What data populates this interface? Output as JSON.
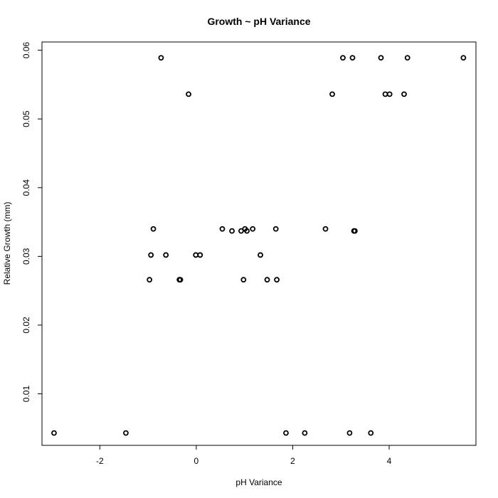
{
  "chart_data": {
    "type": "scatter",
    "title": "Growth ~ pH Variance",
    "xlabel": "pH Variance",
    "ylabel": "Relative Growth (mm)",
    "xlim": [
      -3.2,
      5.8
    ],
    "ylim": [
      0.0025,
      0.0612
    ],
    "x_ticks": [
      -2,
      0,
      2,
      4
    ],
    "x_tick_labels": [
      "-2",
      "0",
      "2",
      "4"
    ],
    "y_ticks": [
      0.01,
      0.02,
      0.03,
      0.04,
      0.05,
      0.06
    ],
    "y_tick_labels": [
      "0.01",
      "0.02",
      "0.03",
      "0.04",
      "0.05",
      "0.06"
    ],
    "grid": false,
    "marker": "open-circle",
    "points": [
      {
        "x": -2.95,
        "y": 0.0043
      },
      {
        "x": -1.46,
        "y": 0.0043
      },
      {
        "x": 1.86,
        "y": 0.0043
      },
      {
        "x": 2.25,
        "y": 0.0043
      },
      {
        "x": 3.18,
        "y": 0.0043
      },
      {
        "x": 3.62,
        "y": 0.0043
      },
      {
        "x": -0.97,
        "y": 0.0266
      },
      {
        "x": -0.35,
        "y": 0.0266
      },
      {
        "x": -0.33,
        "y": 0.0266
      },
      {
        "x": 0.98,
        "y": 0.0266
      },
      {
        "x": 1.47,
        "y": 0.0266
      },
      {
        "x": 1.67,
        "y": 0.0266
      },
      {
        "x": -0.94,
        "y": 0.0302
      },
      {
        "x": -0.63,
        "y": 0.0302
      },
      {
        "x": -0.01,
        "y": 0.0302
      },
      {
        "x": 0.08,
        "y": 0.0302
      },
      {
        "x": 1.33,
        "y": 0.0302
      },
      {
        "x": 0.74,
        "y": 0.0337
      },
      {
        "x": 0.93,
        "y": 0.0337
      },
      {
        "x": 1.05,
        "y": 0.0337
      },
      {
        "x": 3.27,
        "y": 0.0337
      },
      {
        "x": 3.29,
        "y": 0.0337
      },
      {
        "x": -0.89,
        "y": 0.034
      },
      {
        "x": 0.54,
        "y": 0.034
      },
      {
        "x": 1.01,
        "y": 0.034
      },
      {
        "x": 1.17,
        "y": 0.034
      },
      {
        "x": 1.65,
        "y": 0.034
      },
      {
        "x": 2.68,
        "y": 0.034
      },
      {
        "x": -0.16,
        "y": 0.0536
      },
      {
        "x": 2.82,
        "y": 0.0536
      },
      {
        "x": 3.92,
        "y": 0.0536
      },
      {
        "x": 4.01,
        "y": 0.0536
      },
      {
        "x": 4.31,
        "y": 0.0536
      },
      {
        "x": -0.73,
        "y": 0.0589
      },
      {
        "x": 3.04,
        "y": 0.0589
      },
      {
        "x": 3.24,
        "y": 0.0589
      },
      {
        "x": 3.83,
        "y": 0.0589
      },
      {
        "x": 4.38,
        "y": 0.0589
      },
      {
        "x": 5.54,
        "y": 0.0589
      }
    ]
  }
}
